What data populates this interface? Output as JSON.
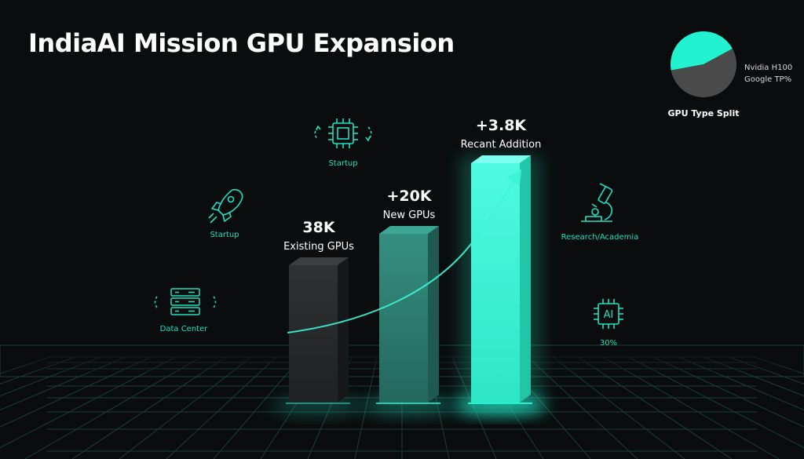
{
  "title": "IndiaAI Mission GPU Expansion",
  "colors": {
    "accent": "#22f2d0",
    "bar_dark": "#2a2d2e",
    "bar_mid": "#2f8577",
    "bar_bright": "#3ef5d8",
    "background": "#0b0c0d"
  },
  "chart_data": [
    {
      "type": "bar",
      "categories": [
        "Existing GPUs",
        "New GPUs",
        "Recant Addition"
      ],
      "values": [
        38000,
        20000,
        3800
      ],
      "value_labels": [
        "38K",
        "+20K",
        "+3.8K"
      ],
      "category_labels": [
        "Existing GPUs",
        "New GPUs",
        "Recant Addition"
      ],
      "trend_arrow": true,
      "grid": "perspective floor grid",
      "xlabel": "",
      "ylabel": ""
    },
    {
      "type": "pie",
      "title": "GPU Type Split",
      "labels": [
        "Nvidia H100",
        "Google TP%"
      ],
      "values": [
        45,
        55
      ],
      "colors": [
        "#22f2d0",
        "#4a4a4a"
      ]
    }
  ],
  "icons": [
    {
      "name": "chip-icon",
      "label": "Startup"
    },
    {
      "name": "rocket-icon",
      "label": "Startup"
    },
    {
      "name": "server-icon",
      "label": "Data Center"
    },
    {
      "name": "microscope-icon",
      "label": "Research/Academia"
    },
    {
      "name": "ai-chip-icon",
      "label": "30%"
    }
  ]
}
